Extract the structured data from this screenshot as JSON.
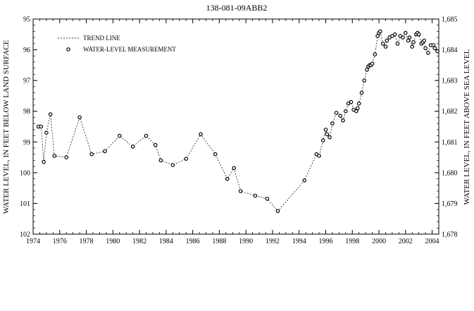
{
  "chart_data": {
    "type": "scatter",
    "title": "138-081-09ABB2",
    "ylabel_left": "WATER LEVEL, IN FEET BELOW LAND SURFACE",
    "ylabel_right": "WATER LEVEL, IN FEET ABOVE SEA LEVEL",
    "xlim": [
      1974,
      2004.5
    ],
    "ylim_left": [
      102,
      95
    ],
    "ylim_right": [
      1678,
      1685
    ],
    "left_axis_inverted": true,
    "x_ticks": [
      1974,
      1976,
      1978,
      1980,
      1982,
      1984,
      1986,
      1988,
      1990,
      1992,
      1994,
      1996,
      1998,
      2000,
      2002,
      2004
    ],
    "x_tick_labels": [
      "1974",
      "1976",
      "1978",
      "1980",
      "1982",
      "1984",
      "1986",
      "1988",
      "1990",
      "1992",
      "1994",
      "1996",
      "1998",
      "2000",
      "2002",
      "2004"
    ],
    "y_left_ticks": [
      95,
      96,
      97,
      98,
      99,
      100,
      101,
      102
    ],
    "y_left_tick_labels": [
      "95",
      "96",
      "97",
      "98",
      "99",
      "100",
      "101",
      "102"
    ],
    "y_right_ticks": [
      1685,
      1684,
      1683,
      1682,
      1681,
      1680,
      1679,
      1678
    ],
    "y_right_tick_labels": [
      "1,685",
      "1,684",
      "1,683",
      "1,682",
      "1,681",
      "1,680",
      "1,679",
      "1,678"
    ],
    "legend": {
      "placement": "top-left",
      "entries": [
        {
          "label": "TREND LINE",
          "style": "dashed-line"
        },
        {
          "label": "WATER-LEVEL MEASUREMENT",
          "style": "open-circle"
        }
      ]
    },
    "grid": false,
    "series": [
      {
        "style": "dashed-line-with-open-circles",
        "x": [
          1974.4,
          1974.6,
          1974.8,
          1975.0,
          1975.3,
          1975.6,
          1976.5,
          1977.5,
          1978.4,
          1979.4,
          1980.5,
          1981.5,
          1982.5,
          1983.2,
          1983.6,
          1984.5,
          1985.5,
          1986.6,
          1987.7,
          1988.6,
          1989.1,
          1989.6,
          1990.7,
          1991.6,
          1992.4,
          1994.4,
          1995.3,
          1995.5,
          1995.8,
          1996.0,
          1996.1,
          1996.3,
          1996.5,
          1996.8,
          1997.1,
          1997.3,
          1997.5,
          1997.7,
          1997.9,
          1998.1,
          1998.3,
          1998.4,
          1998.5,
          1998.7,
          1998.9,
          1999.1,
          1999.2,
          1999.3,
          1999.4,
          1999.5,
          1999.7,
          1999.9,
          2000.0,
          2000.1,
          2000.3,
          2000.5,
          2000.6,
          2000.8,
          2001.0,
          2001.2,
          2001.4,
          2001.6,
          2001.8,
          2002.0,
          2002.2,
          2002.3,
          2002.5,
          2002.6,
          2002.8,
          2002.9,
          2003.0,
          2003.2,
          2003.3,
          2003.4,
          2003.5,
          2003.7,
          2003.9,
          2004.1,
          2004.2,
          2004.4
        ],
        "y": [
          98.5,
          98.5,
          99.65,
          98.7,
          98.1,
          99.45,
          99.5,
          98.2,
          99.4,
          99.3,
          98.8,
          99.15,
          98.8,
          99.1,
          99.6,
          99.75,
          99.55,
          98.75,
          99.4,
          100.2,
          99.85,
          100.6,
          100.75,
          100.85,
          101.25,
          100.25,
          99.4,
          99.45,
          98.95,
          98.6,
          98.75,
          98.85,
          98.4,
          98.05,
          98.15,
          98.3,
          98.0,
          97.75,
          97.7,
          97.95,
          98.0,
          97.9,
          97.75,
          97.4,
          97.0,
          96.65,
          96.55,
          96.5,
          96.5,
          96.45,
          96.15,
          95.55,
          95.45,
          95.4,
          95.8,
          95.9,
          95.7,
          95.6,
          95.55,
          95.5,
          95.8,
          95.55,
          95.6,
          95.45,
          95.7,
          95.6,
          95.9,
          95.75,
          95.5,
          95.45,
          95.5,
          95.8,
          95.75,
          95.7,
          95.95,
          96.1,
          95.85,
          95.85,
          95.95,
          96.05
        ]
      }
    ]
  }
}
